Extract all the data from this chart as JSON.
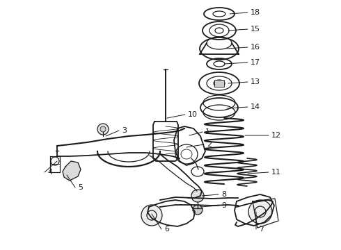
{
  "bg_color": "#ffffff",
  "line_color": "#1a1a1a",
  "fig_width": 4.9,
  "fig_height": 3.6,
  "dpi": 100,
  "label_fontsize": 8.0,
  "labels": [
    [
      "18",
      360,
      18,
      330,
      20
    ],
    [
      "15",
      360,
      42,
      328,
      44
    ],
    [
      "16",
      360,
      68,
      326,
      70
    ],
    [
      "17",
      360,
      90,
      322,
      92
    ],
    [
      "13",
      360,
      118,
      328,
      120
    ],
    [
      "14",
      360,
      154,
      326,
      156
    ],
    [
      "12",
      390,
      195,
      352,
      195
    ],
    [
      "11",
      390,
      248,
      356,
      250
    ],
    [
      "10",
      270,
      165,
      240,
      170
    ],
    [
      "1",
      295,
      190,
      272,
      195
    ],
    [
      "2",
      297,
      208,
      268,
      212
    ],
    [
      "3",
      175,
      188,
      152,
      196
    ],
    [
      "4",
      68,
      248,
      82,
      232
    ],
    [
      "5",
      112,
      270,
      96,
      252
    ],
    [
      "8",
      318,
      280,
      290,
      282
    ],
    [
      "9",
      318,
      296,
      288,
      298
    ],
    [
      "6",
      236,
      330,
      218,
      308
    ],
    [
      "7",
      372,
      330,
      368,
      305
    ]
  ]
}
